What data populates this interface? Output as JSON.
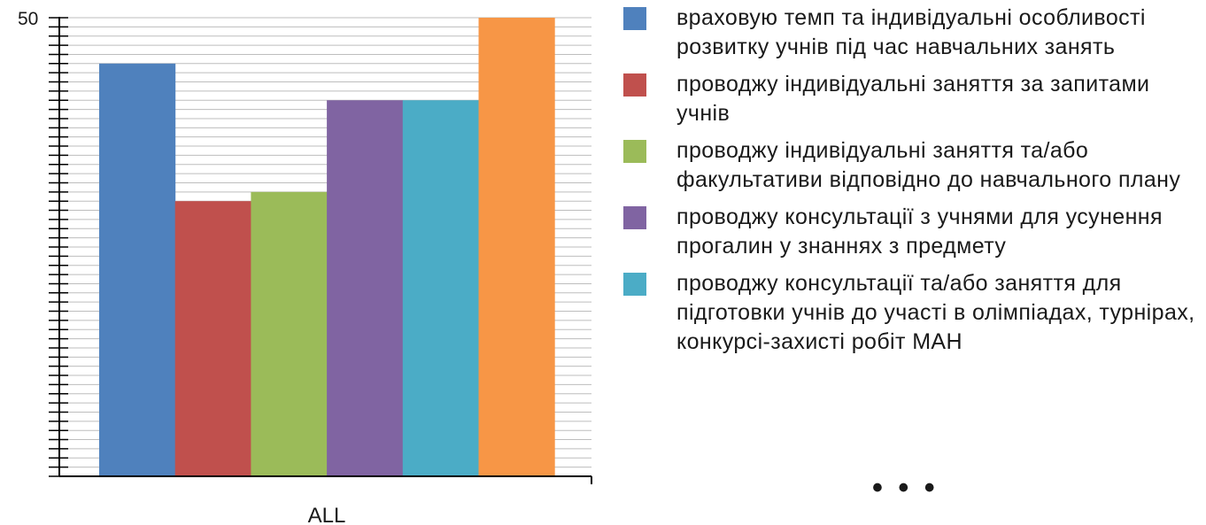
{
  "chart_data": {
    "type": "bar",
    "categories": [
      "ALL"
    ],
    "series": [
      {
        "name": "враховую темп та індивідуальні особливості розвитку учнів під час навчальних занять",
        "values": [
          45
        ],
        "color": "#4F81BD"
      },
      {
        "name": "проводжу індивідуальні заняття за запитами  учнів",
        "values": [
          30
        ],
        "color": "#C0504D"
      },
      {
        "name": "проводжу індивідуальні заняття та/або факультативи  відповідно до навчального плану",
        "values": [
          31
        ],
        "color": "#9BBB59"
      },
      {
        "name": "проводжу  консультації з учнями для усунення прогалин у знаннях з предмету",
        "values": [
          41
        ],
        "color": "#8064A2"
      },
      {
        "name": "проводжу  консультації та/або заняття для підготовки учнів до участі в олімпіадах, турнірах, конкурсі-захисті робіт МАН",
        "values": [
          41
        ],
        "color": "#4BACC6"
      },
      {
        "name": "",
        "values": [
          50
        ],
        "color": "#F79646"
      }
    ],
    "ylim": [
      0,
      50
    ],
    "y_tick_step": 1,
    "y_top_label": "50",
    "grid": true,
    "legend_position": "right",
    "legend_more": "• • •"
  }
}
